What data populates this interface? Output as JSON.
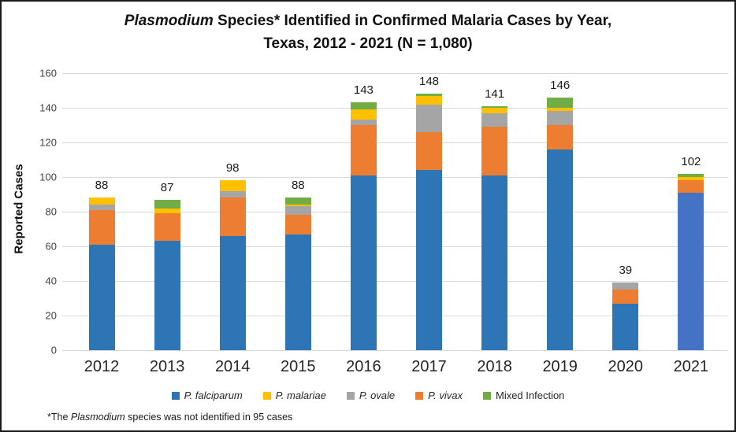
{
  "title": {
    "line1_italic": "Plasmodium",
    "line1_rest": " Species* Identified in Confirmed Malaria Cases by Year,",
    "line2": "Texas, 2012 - 2021 (N = 1,080)"
  },
  "y_axis": {
    "title": "Reported Cases",
    "ticks": [
      0,
      20,
      40,
      60,
      80,
      100,
      120,
      140,
      160
    ],
    "max": 160
  },
  "legend": {
    "items": [
      {
        "label": "P. falciparum",
        "color": "#2E75B6",
        "italic": true
      },
      {
        "label": "P. malariae",
        "color": "#FFC000",
        "italic": true
      },
      {
        "label": "P. ovale",
        "color": "#A5A5A5",
        "italic": true
      },
      {
        "label": "P. vivax",
        "color": "#ED7D31",
        "italic": true
      },
      {
        "label": "Mixed Infection",
        "color": "#70AD47",
        "italic": false
      }
    ]
  },
  "footnote": {
    "prefix": "*The ",
    "italic": "Plasmodium",
    "suffix": " species was not identified in 95 cases"
  },
  "chart_data": {
    "type": "bar",
    "subtype": "stacked",
    "title": "Plasmodium Species* Identified in Confirmed Malaria Cases by Year, Texas, 2012 - 2021 (N = 1,080)",
    "xlabel": "",
    "ylabel": "Reported Cases",
    "ylim": [
      0,
      160
    ],
    "grid": true,
    "legend_position": "bottom",
    "categories": [
      "2012",
      "2013",
      "2014",
      "2015",
      "2016",
      "2017",
      "2018",
      "2019",
      "2020",
      "2021"
    ],
    "series": [
      {
        "name": "P. falciparum",
        "color": "#2E75B6",
        "values": [
          61,
          63,
          66,
          67,
          101,
          104,
          101,
          116,
          27,
          91
        ]
      },
      {
        "name": "P. vivax",
        "color": "#ED7D31",
        "values": [
          20,
          16,
          22,
          11,
          29,
          22,
          28,
          14,
          8,
          7
        ]
      },
      {
        "name": "P. ovale",
        "color": "#A5A5A5",
        "values": [
          3,
          0,
          4,
          5,
          3,
          16,
          8,
          8,
          4,
          0
        ]
      },
      {
        "name": "P. malariae",
        "color": "#FFC000",
        "values": [
          4,
          3,
          6,
          1,
          6,
          5,
          3,
          2,
          0,
          2
        ]
      },
      {
        "name": "Mixed Infection",
        "color": "#70AD47",
        "values": [
          0,
          5,
          0,
          4,
          4,
          1,
          1,
          6,
          0,
          2
        ]
      }
    ],
    "totals": [
      88,
      87,
      98,
      88,
      143,
      148,
      141,
      146,
      39,
      102
    ],
    "special_colors": {
      "falciparum_2021": "#4472C4"
    },
    "gridline_color": "#D9D9D9"
  }
}
